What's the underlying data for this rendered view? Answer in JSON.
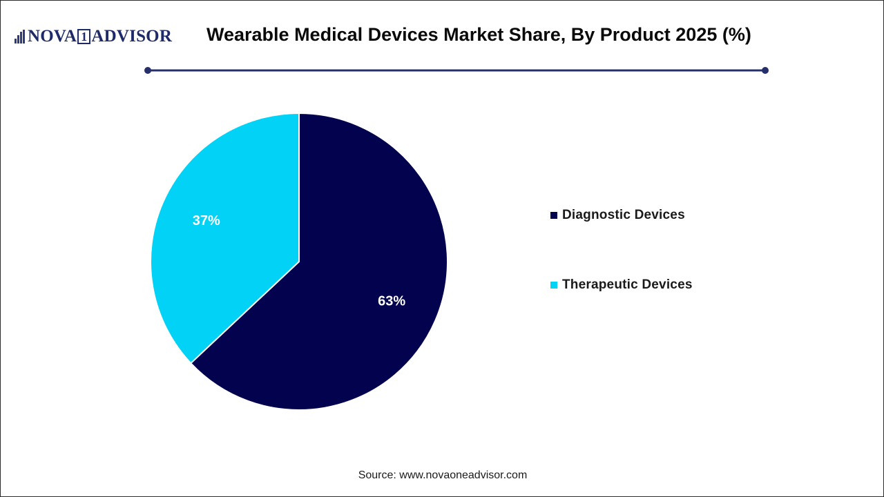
{
  "brand": {
    "name_part1": "NOVA",
    "name_one": "1",
    "name_part2": "ADVISOR"
  },
  "colors": {
    "diagnostic": "#02024e",
    "therapeutic": "#02d2f5",
    "divider": "#25306b",
    "label_text": "#ffffff"
  },
  "chart_data": {
    "type": "pie",
    "title": "Wearable Medical Devices Market Share, By Product 2025 (%)",
    "slices": [
      {
        "name": "Diagnostic Devices",
        "value": 63,
        "label": "63%",
        "color": "#02024e"
      },
      {
        "name": "Therapeutic Devices",
        "value": 37,
        "label": "37%",
        "color": "#02d2f5"
      }
    ],
    "start_angle_deg": 0,
    "direction": "clockwise",
    "legend_position": "right"
  },
  "legend": {
    "items": [
      {
        "label": "Diagnostic Devices",
        "color": "#02024e"
      },
      {
        "label": "Therapeutic Devices",
        "color": "#02d2f5"
      }
    ]
  },
  "source": "Source: www.novaoneadvisor.com"
}
